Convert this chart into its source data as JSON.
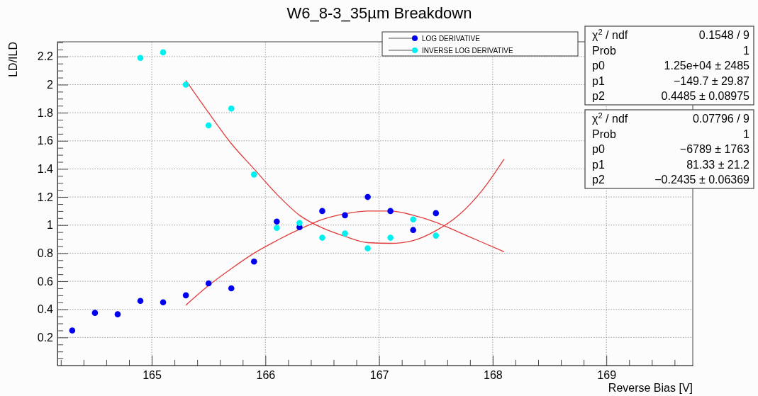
{
  "chart_data": {
    "type": "scatter",
    "title": "W6_8-3_35µm Breakdown",
    "xlabel": "Reverse Bias [V]",
    "ylabel": "LD/ILD",
    "xlim": [
      164.17,
      169.76
    ],
    "ylim": [
      0,
      2.305
    ],
    "xticks": [
      {
        "value": 164.2,
        "label": null
      },
      {
        "value": 164.4,
        "label": null
      },
      {
        "value": 164.6,
        "label": null
      },
      {
        "value": 164.8,
        "label": null
      },
      165,
      {
        "value": 165.2,
        "label": null
      },
      {
        "value": 165.4,
        "label": null
      },
      {
        "value": 165.6,
        "label": null
      },
      {
        "value": 165.8,
        "label": null
      },
      166,
      {
        "value": 166.2,
        "label": null
      },
      {
        "value": 166.4,
        "label": null
      },
      {
        "value": 166.6,
        "label": null
      },
      {
        "value": 166.8,
        "label": null
      },
      167,
      {
        "value": 167.2,
        "label": null
      },
      {
        "value": 167.4,
        "label": null
      },
      {
        "value": 167.6,
        "label": null
      },
      {
        "value": 167.8,
        "label": null
      },
      168,
      {
        "value": 168.2,
        "label": null
      },
      {
        "value": 168.4,
        "label": null
      },
      {
        "value": 168.6,
        "label": null
      },
      {
        "value": 168.8,
        "label": null
      },
      169,
      {
        "value": 169.2,
        "label": null
      },
      {
        "value": 169.4,
        "label": null
      },
      {
        "value": 169.6,
        "label": null
      }
    ],
    "yticks": [
      {
        "value": 0.05,
        "label": null
      },
      {
        "value": 0.1,
        "label": null
      },
      {
        "value": 0.15,
        "label": null
      },
      0.2,
      {
        "value": 0.25,
        "label": null
      },
      {
        "value": 0.3,
        "label": null
      },
      {
        "value": 0.35,
        "label": null
      },
      0.4,
      {
        "value": 0.45,
        "label": null
      },
      {
        "value": 0.5,
        "label": null
      },
      {
        "value": 0.55,
        "label": null
      },
      0.6,
      {
        "value": 0.65,
        "label": null
      },
      {
        "value": 0.7,
        "label": null
      },
      {
        "value": 0.75,
        "label": null
      },
      0.8,
      {
        "value": 0.85,
        "label": null
      },
      {
        "value": 0.9,
        "label": null
      },
      {
        "value": 0.95,
        "label": null
      },
      1,
      {
        "value": 1.05,
        "label": null
      },
      {
        "value": 1.1,
        "label": null
      },
      {
        "value": 1.15,
        "label": null
      },
      1.2,
      {
        "value": 1.25,
        "label": null
      },
      {
        "value": 1.3,
        "label": null
      },
      {
        "value": 1.35,
        "label": null
      },
      1.4,
      {
        "value": 1.45,
        "label": null
      },
      {
        "value": 1.5,
        "label": null
      },
      {
        "value": 1.55,
        "label": null
      },
      1.6,
      {
        "value": 1.65,
        "label": null
      },
      {
        "value": 1.7,
        "label": null
      },
      {
        "value": 1.75,
        "label": null
      },
      1.8,
      {
        "value": 1.85,
        "label": null
      },
      {
        "value": 1.9,
        "label": null
      },
      {
        "value": 1.95,
        "label": null
      },
      2,
      {
        "value": 2.05,
        "label": null
      },
      {
        "value": 2.1,
        "label": null
      },
      {
        "value": 2.15,
        "label": null
      },
      2.2,
      {
        "value": 2.25,
        "label": null
      },
      {
        "value": 2.3,
        "label": null
      }
    ],
    "grid": true,
    "legend": "top right",
    "marker": "circle",
    "series": [
      {
        "name": "LOG DERIVATIVE",
        "color": "#0000f0",
        "x": [
          164.3,
          164.5,
          164.7,
          164.9,
          165.1,
          165.3,
          165.5,
          165.7,
          165.9,
          166.1,
          166.3,
          166.5,
          166.7,
          166.9,
          167.1,
          167.3,
          167.5
        ],
        "values": [
          0.25,
          0.375,
          0.365,
          0.46,
          0.45,
          0.5,
          0.585,
          0.55,
          0.74,
          1.025,
          0.985,
          1.1,
          1.07,
          1.2,
          1.1,
          0.965,
          1.085
        ]
      },
      {
        "name": "INVERSE LOG DERIVATIVE",
        "color": "#00f0f0",
        "x": [
          164.9,
          165.1,
          165.3,
          165.5,
          165.7,
          165.9,
          166.1,
          166.3,
          166.5,
          166.7,
          166.9,
          167.1,
          167.3,
          167.5
        ],
        "values": [
          2.19,
          2.23,
          2.0,
          1.71,
          1.83,
          1.36,
          0.98,
          1.015,
          0.91,
          0.94,
          0.835,
          0.91,
          1.04,
          0.925
        ]
      },
      {
        "type": "line",
        "color": "#e03c3c",
        "marker": "none",
        "x": [
          165.3,
          165.5,
          165.7,
          165.9,
          166.1,
          166.3,
          166.5,
          166.7,
          166.9,
          167.1,
          167.3,
          167.5,
          167.7,
          167.9,
          168.1
        ],
        "values": [
          2.03,
          1.8,
          1.58,
          1.4,
          1.22,
          1.07,
          0.98,
          0.92,
          0.875,
          0.87,
          0.89,
          0.96,
          1.07,
          1.24,
          1.47
        ]
      },
      {
        "type": "line",
        "color": "#e03c3c",
        "marker": "none",
        "x": [
          165.3,
          165.5,
          165.7,
          165.9,
          166.1,
          166.3,
          166.5,
          166.7,
          166.9,
          167.1,
          167.3,
          167.5,
          167.7,
          167.9,
          168.1
        ],
        "values": [
          0.43,
          0.57,
          0.69,
          0.8,
          0.89,
          0.97,
          1.04,
          1.08,
          1.1,
          1.1,
          1.07,
          1.02,
          0.95,
          0.88,
          0.81
        ]
      }
    ],
    "annotations": [
      "χ$^{2}$ / ndf",
      "0.1548 / 9",
      "Prob",
      "1",
      "p0",
      "1.25e+04 ± 2485",
      "p1",
      "−149.7 ± 29.87",
      "p2",
      "0.4485 ± 0.08975",
      "χ$^{2}$ / ndf",
      "0.07796 / 9",
      "Prob",
      "1",
      "p0",
      "−6789 ± 1763",
      "p1",
      "81.33 ± 21.2",
      "p2",
      "−0.2435 ± 0.06369"
    ]
  }
}
